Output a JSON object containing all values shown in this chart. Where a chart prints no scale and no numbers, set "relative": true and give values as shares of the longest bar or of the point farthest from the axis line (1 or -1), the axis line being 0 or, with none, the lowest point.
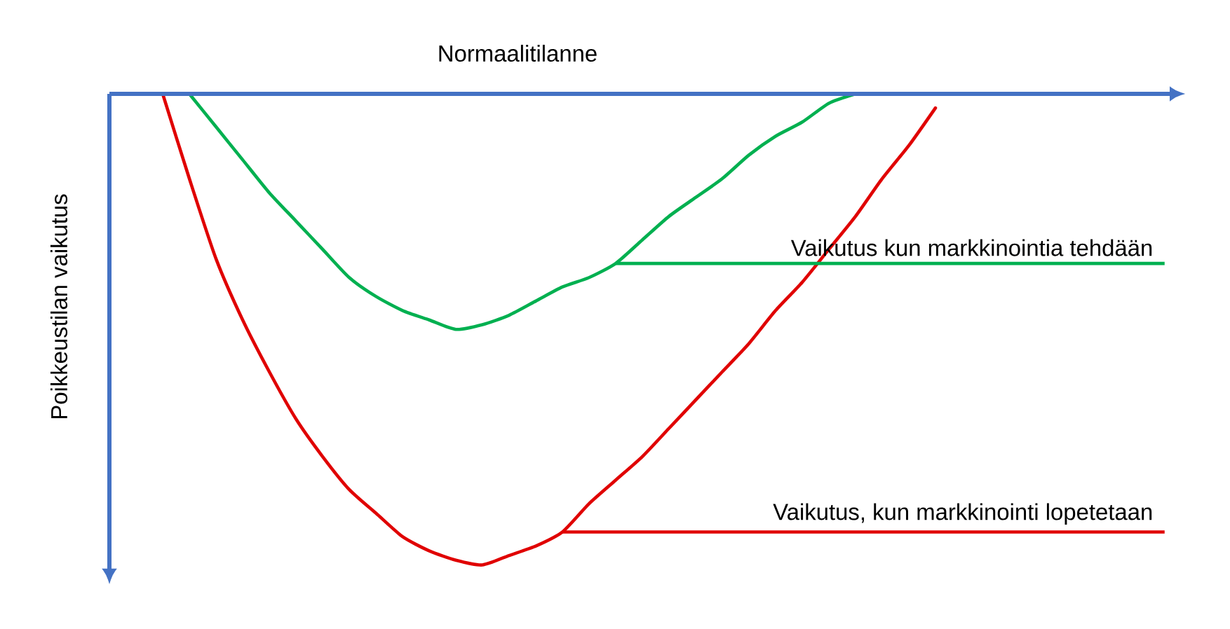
{
  "chart_data": {
    "type": "line",
    "xlabel": "Normaalitilanne",
    "ylabel": "Poikkeustilan vaikutus",
    "relative": true,
    "marker": "none",
    "categories": [
      null,
      null,
      null,
      null,
      null,
      null,
      null,
      null,
      null,
      null,
      null,
      null,
      null,
      null,
      null,
      null,
      null,
      null,
      null,
      null,
      null,
      null,
      null,
      null,
      null,
      null,
      null,
      null,
      null,
      null,
      null,
      null,
      null,
      null,
      null,
      null,
      null,
      null,
      null,
      null,
      null
    ],
    "series": [
      {
        "name": "Vaikutus kun markkinointia tehdään",
        "color": "#00b050",
        "values": [
          null,
          null,
          null,
          0,
          -0.07,
          -0.14,
          -0.21,
          -0.27,
          -0.33,
          -0.39,
          -0.43,
          -0.46,
          -0.48,
          -0.5,
          -0.49,
          -0.47,
          -0.44,
          -0.41,
          -0.39,
          -0.36,
          -0.31,
          -0.26,
          -0.22,
          -0.18,
          -0.13,
          -0.09,
          -0.06,
          -0.02,
          0,
          null,
          null,
          null,
          null,
          null,
          null,
          null,
          null,
          null,
          null,
          null,
          null
        ]
      },
      {
        "name": "Vaikutus, kun markkinointi lopetetaan",
        "color": "#e00000",
        "values": [
          null,
          null,
          0,
          -0.18,
          -0.35,
          -0.48,
          -0.59,
          -0.69,
          -0.77,
          -0.84,
          -0.89,
          -0.94,
          -0.97,
          -0.99,
          -1,
          -0.98,
          -0.96,
          -0.93,
          -0.87,
          -0.82,
          -0.77,
          -0.71,
          -0.65,
          -0.59,
          -0.53,
          -0.46,
          -0.4,
          -0.33,
          -0.26,
          -0.18,
          -0.11,
          -0.03,
          null,
          null,
          null,
          null,
          null,
          null,
          null,
          null,
          null
        ]
      }
    ]
  }
}
